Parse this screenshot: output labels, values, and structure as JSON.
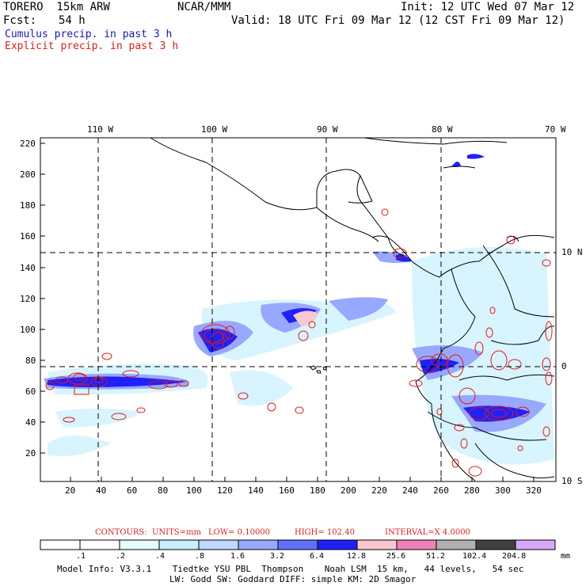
{
  "header": {
    "model": "TORERO  15km ARW",
    "center": "NCAR/MMM",
    "init": "Init: 12 UTC Wed 07 Mar 12",
    "fcst_label": "Fcst:",
    "fcst_value": "54 h",
    "valid": "Valid: 18 UTC Fri 09 Mar 12 (12 CST Fri 09 Mar 12)"
  },
  "fields": {
    "cumulus": "Cumulus precip. in past 3 h",
    "explicit": "Explicit precip. in past 3 h"
  },
  "colors": {
    "cumulus_text": "#1a1aa8",
    "explicit_text": "#d42020",
    "contour": "#e01818",
    "land": "#000000",
    "grid": "#000000"
  },
  "top_lon_labels": [
    "110 W",
    "100 W",
    "90 W",
    "80 W",
    "70 W"
  ],
  "right_lat_labels": [
    "10 N",
    "0",
    "10 S"
  ],
  "y_ticks": [
    "220",
    "200",
    "180",
    "160",
    "140",
    "120",
    "100",
    "80",
    "60",
    "40",
    "20"
  ],
  "x_ticks": [
    "20",
    "40",
    "60",
    "80",
    "100",
    "120",
    "140",
    "160",
    "180",
    "200",
    "220",
    "240",
    "260",
    "280",
    "300",
    "320"
  ],
  "contour_info": {
    "contours": "CONTOURS:",
    "units": "UNITS=mm",
    "low": "LOW= 0.10000",
    "high": "HIGH= 102.40",
    "interval": "INTERVAL=X 4.0000"
  },
  "colorbar": {
    "labels": [
      ".1",
      ".2",
      ".4",
      ".8",
      "1.6",
      "3.2",
      "6.4",
      "12.8",
      "25.6",
      "51.2",
      "102.4",
      "204.8"
    ],
    "unit": "mm",
    "colors": [
      "#ffffff",
      "#ffffff",
      "#e8fbff",
      "#c8f0ff",
      "#c0d8ff",
      "#98a8ff",
      "#6070ff",
      "#2020f8",
      "#f8c8d0",
      "#f080b8",
      "#b0b0b0",
      "#404040",
      "#d8a8f8"
    ]
  },
  "footer": {
    "line1": "Model Info: V3.3.1    Tiedtke YSU PBL  Thompson    Noah LSM  15 km,   44 levels,   54 sec",
    "line2": "LW: Godd SW: Goddard DIFF: simple KM: 2D Smagor"
  }
}
